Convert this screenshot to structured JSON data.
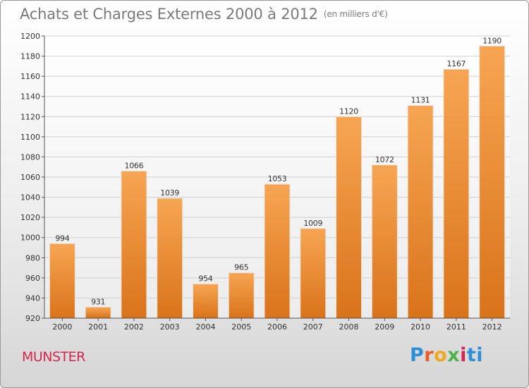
{
  "header": {
    "title": "Achats et Charges Externes 2000 à 2012",
    "subtitle": "(en milliers d'€)"
  },
  "footer": {
    "commune": "MUNSTER",
    "logo_text": "Proxiti"
  },
  "colors": {
    "bar_light": "#f7a553",
    "bar_dark": "#d9731a",
    "grid": "#cfcfcf",
    "title": "#7a7a7a",
    "commune": "#d3274f"
  },
  "chart_data": {
    "type": "bar",
    "title": "Achats et Charges Externes 2000 à 2012",
    "subtitle": "(en milliers d'€)",
    "xlabel": "",
    "ylabel": "",
    "categories": [
      "2000",
      "2001",
      "2002",
      "2003",
      "2004",
      "2005",
      "2006",
      "2007",
      "2008",
      "2009",
      "2010",
      "2011",
      "2012"
    ],
    "values": [
      994,
      931,
      1066,
      1039,
      954,
      965,
      1053,
      1009,
      1120,
      1072,
      1131,
      1167,
      1190
    ],
    "ylim": [
      920,
      1200
    ],
    "yticks": [
      920,
      940,
      960,
      980,
      1000,
      1020,
      1040,
      1060,
      1080,
      1100,
      1120,
      1140,
      1160,
      1180,
      1200
    ],
    "grid": true,
    "data_labels": true,
    "legend": "none"
  }
}
